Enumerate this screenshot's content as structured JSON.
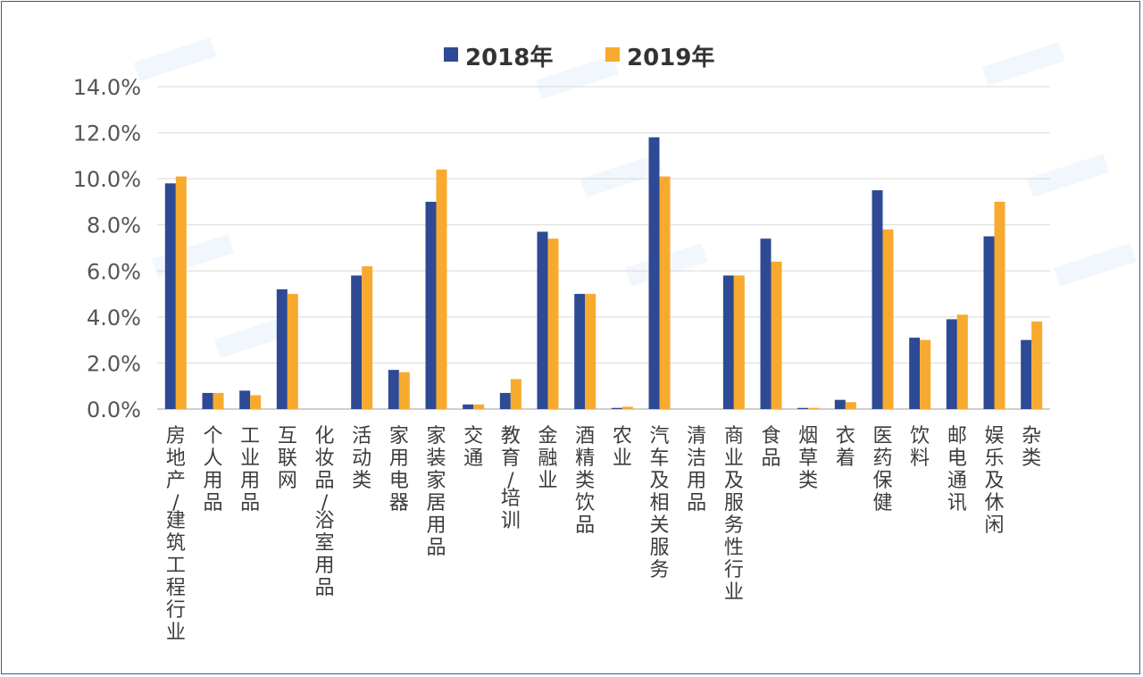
{
  "chart_data": {
    "type": "bar",
    "categories": [
      "房地产/建筑工程行业",
      "个人用品",
      "工业用品",
      "互联网",
      "化妆品/浴室用品",
      "活动类",
      "家用电器",
      "家装家居用品",
      "交通",
      "教育/培训",
      "金融业",
      "酒精类饮品",
      "农业",
      "汽车及相关服务",
      "清洁用品",
      "商业及服务性行业",
      "食品",
      "烟草类",
      "衣着",
      "医药保健",
      "饮料",
      "邮电通讯",
      "娱乐及休闲",
      "杂类"
    ],
    "series": [
      {
        "name": "2018年",
        "color": "#2e4a94",
        "values": [
          9.8,
          0.7,
          0.8,
          5.2,
          0.0,
          5.8,
          1.7,
          9.0,
          0.2,
          0.7,
          7.7,
          5.0,
          0.05,
          11.8,
          0.0,
          5.8,
          7.4,
          0.05,
          0.4,
          9.5,
          3.1,
          3.9,
          7.5,
          3.0
        ]
      },
      {
        "name": "2019年",
        "color": "#f7aa2e",
        "values": [
          10.1,
          0.7,
          0.6,
          5.0,
          0.0,
          6.2,
          1.6,
          10.4,
          0.2,
          1.3,
          7.4,
          5.0,
          0.1,
          10.1,
          0.0,
          5.8,
          6.4,
          0.05,
          0.3,
          7.8,
          3.0,
          4.1,
          9.0,
          3.8
        ]
      }
    ],
    "y_ticks": [
      "0.0%",
      "2.0%",
      "4.0%",
      "6.0%",
      "8.0%",
      "10.0%",
      "12.0%",
      "14.0%"
    ],
    "ylim": [
      0,
      14
    ],
    "grid": true,
    "legend": "top-center",
    "title": "",
    "xlabel": "",
    "ylabel": ""
  }
}
